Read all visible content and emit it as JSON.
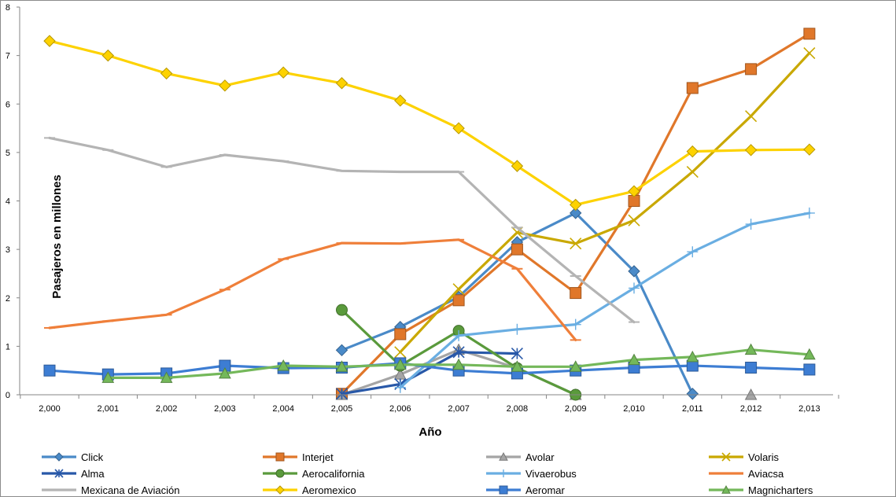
{
  "chart_data": {
    "type": "line",
    "title": "",
    "xlabel": "Año",
    "ylabel": "Pasajeros en millones",
    "x": [
      2000,
      2001,
      2002,
      2003,
      2004,
      2005,
      2006,
      2007,
      2008,
      2009,
      2010,
      2011,
      2012,
      2013
    ],
    "x_tick_labels": [
      "2,000",
      "2,001",
      "2,002",
      "2,003",
      "2,004",
      "2,005",
      "2,006",
      "2,007",
      "2,008",
      "2,009",
      "2,010",
      "2,011",
      "2,012",
      "2,013"
    ],
    "y_tick_labels": [
      "0",
      "1",
      "2",
      "3",
      "4",
      "5",
      "6",
      "7",
      "8"
    ],
    "ylim": [
      0,
      8
    ],
    "legend_position": "bottom",
    "series": [
      {
        "name": "Click",
        "color": "#4a8ac8",
        "marker": "diamond",
        "values": [
          null,
          null,
          null,
          null,
          null,
          0.92,
          1.4,
          2.02,
          3.15,
          3.75,
          2.55,
          0.02,
          null,
          null
        ]
      },
      {
        "name": "Interjet",
        "color": "#e0772a",
        "marker": "square",
        "values": [
          null,
          null,
          null,
          null,
          null,
          0.02,
          1.25,
          1.95,
          3.0,
          2.1,
          4.0,
          6.33,
          6.72,
          7.45
        ]
      },
      {
        "name": "Avolar",
        "color": "#a5a5a5",
        "marker": "triangle",
        "values": [
          null,
          null,
          null,
          null,
          null,
          0.0,
          0.42,
          0.93,
          0.55,
          0.0,
          null,
          null,
          0.0,
          null
        ]
      },
      {
        "name": "Volaris",
        "color": "#c9a800",
        "marker": "x",
        "values": [
          null,
          null,
          null,
          null,
          null,
          null,
          0.88,
          2.18,
          3.35,
          3.12,
          3.6,
          4.6,
          5.75,
          7.05
        ]
      },
      {
        "name": "Alma",
        "color": "#2858a8",
        "marker": "star",
        "values": [
          null,
          null,
          null,
          null,
          null,
          0.02,
          0.22,
          0.88,
          0.85,
          null,
          null,
          null,
          null,
          null
        ]
      },
      {
        "name": "Aerocalifornia",
        "color": "#5a9a3c",
        "marker": "circle",
        "values": [
          null,
          null,
          null,
          null,
          null,
          1.75,
          0.6,
          1.32,
          0.55,
          0.0,
          null,
          null,
          null,
          null
        ]
      },
      {
        "name": "Vivaerobus",
        "color": "#6aaee2",
        "marker": "plus",
        "values": [
          null,
          null,
          null,
          null,
          null,
          null,
          0.15,
          1.22,
          1.35,
          1.45,
          2.2,
          2.95,
          3.52,
          3.75
        ]
      },
      {
        "name": "Aviacsa",
        "color": "#ef7f3a",
        "marker": "dash",
        "values": [
          1.38,
          1.52,
          1.65,
          2.17,
          2.8,
          3.13,
          3.12,
          3.2,
          2.6,
          1.13,
          null,
          null,
          null,
          null
        ]
      },
      {
        "name": "Mexicana de Aviación",
        "color": "#b4b4b4",
        "marker": "dash",
        "values": [
          5.3,
          5.05,
          4.7,
          4.95,
          4.82,
          4.62,
          4.6,
          4.6,
          3.45,
          2.45,
          1.5,
          null,
          null,
          null
        ]
      },
      {
        "name": "Aeromexico",
        "color": "#fdd200",
        "marker": "diamond",
        "values": [
          7.3,
          7.0,
          6.63,
          6.38,
          6.65,
          6.43,
          6.07,
          5.5,
          4.72,
          3.92,
          4.2,
          5.02,
          5.05,
          5.06
        ]
      },
      {
        "name": "Aeromar",
        "color": "#3d7dd3",
        "marker": "square",
        "values": [
          0.5,
          0.42,
          0.44,
          0.6,
          0.55,
          0.56,
          0.65,
          0.5,
          0.44,
          0.5,
          0.56,
          0.6,
          0.56,
          0.52
        ]
      },
      {
        "name": "Magnicharters",
        "color": "#74b85a",
        "marker": "triangle",
        "values": [
          null,
          0.35,
          0.35,
          0.44,
          0.6,
          0.58,
          0.62,
          0.62,
          0.58,
          0.58,
          0.72,
          0.78,
          0.93,
          0.83
        ]
      }
    ]
  }
}
